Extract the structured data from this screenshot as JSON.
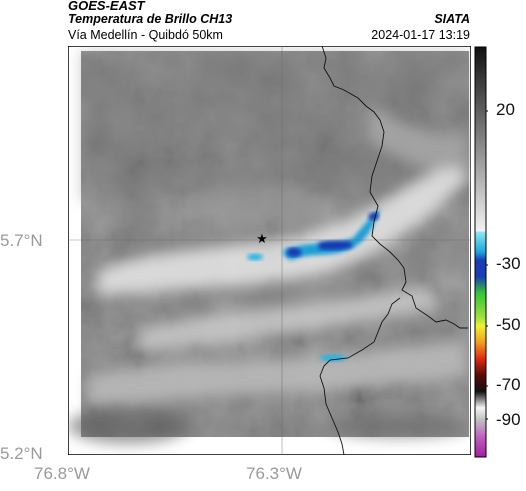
{
  "header": {
    "satellite": "GOES-EAST",
    "product": "Temperatura de Brillo CH13",
    "region": "Vía Medellín - Quibdó 50km",
    "source": "SIATA",
    "datetime": "2024-01-17 13:19"
  },
  "map": {
    "lat_labels": [
      "5.7°N",
      "5.2°N"
    ],
    "lon_labels": [
      "76.8°W",
      "76.3°W"
    ],
    "marker_icon": "star-icon"
  },
  "colorbar": {
    "ticks": [
      "20",
      "-30",
      "-50",
      "-70",
      "-90"
    ]
  },
  "colors": {
    "cloud_blue": "#1e9fd6",
    "cloud_darkblue": "#1838b0",
    "background_grey": "#8a8a8a"
  }
}
